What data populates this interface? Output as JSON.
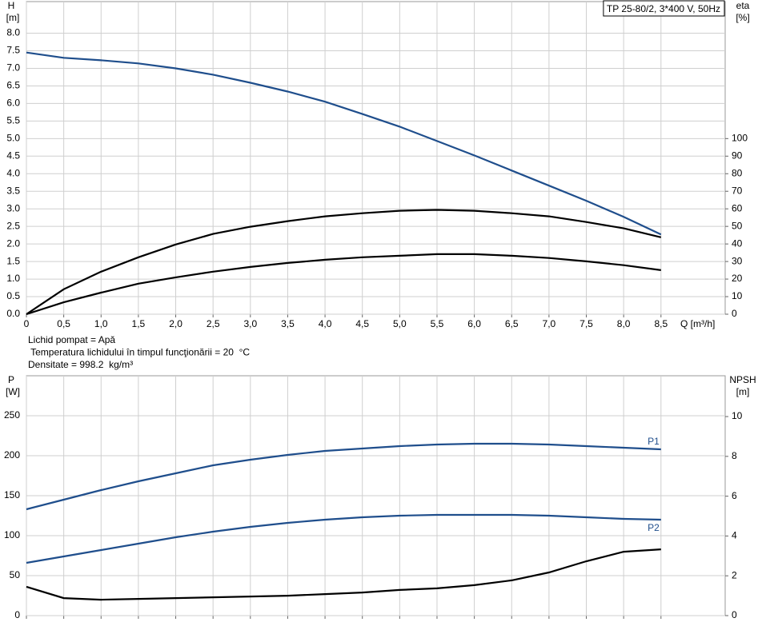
{
  "chart_data": [
    {
      "type": "line",
      "title": "TP 25-80/2, 3*400 V, 50Hz",
      "y_label": "H",
      "y_unit": "[m]",
      "y2_label": "eta",
      "y2_unit": "[%]",
      "x_label": "Q [m³/h]",
      "xlim": [
        0,
        9.36
      ],
      "xticks": [
        0,
        {
          "value": 0.5,
          "label": "0,5"
        },
        {
          "value": 1,
          "label": "1,0"
        },
        {
          "value": 1.5,
          "label": "1,5"
        },
        {
          "value": 2,
          "label": "2,0"
        },
        {
          "value": 2.5,
          "label": "2,5"
        },
        {
          "value": 3,
          "label": "3,0"
        },
        {
          "value": 3.5,
          "label": "3,5"
        },
        {
          "value": 4,
          "label": "4,0"
        },
        {
          "value": 4.5,
          "label": "4,5"
        },
        {
          "value": 5,
          "label": "5,0"
        },
        {
          "value": 5.5,
          "label": "5,5"
        },
        {
          "value": 6,
          "label": "6,0"
        },
        {
          "value": 6.5,
          "label": "6,5"
        },
        {
          "value": 7,
          "label": "7,0"
        },
        {
          "value": 7.5,
          "label": "7,5"
        },
        {
          "value": 8,
          "label": "8,0"
        },
        {
          "value": 8.5,
          "label": "8,5"
        }
      ],
      "show_xtick_labels": true,
      "ylim": [
        0,
        8.9
      ],
      "yticks": [
        {
          "value": 0,
          "label": "0.0"
        },
        0.5,
        {
          "value": 1,
          "label": "1.0"
        },
        1.5,
        {
          "value": 2,
          "label": "2.0"
        },
        2.5,
        {
          "value": 3,
          "label": "3.0"
        },
        3.5,
        {
          "value": 4,
          "label": "4.0"
        },
        4.5,
        {
          "value": 5,
          "label": "5.0"
        },
        5.5,
        {
          "value": 6,
          "label": "6.0"
        },
        6.5,
        {
          "value": 7,
          "label": "7.0"
        },
        7.5,
        {
          "value": 8,
          "label": "8.0"
        }
      ],
      "y2lim": [
        0,
        178
      ],
      "y2ticks": [
        0,
        10,
        20,
        30,
        40,
        50,
        60,
        70,
        80,
        90,
        100
      ],
      "grid": true,
      "x": [
        0,
        0.5,
        1,
        1.5,
        2,
        2.5,
        3,
        3.5,
        4,
        4.5,
        5,
        5.5,
        6,
        6.5,
        7,
        7.5,
        8,
        8.5
      ],
      "series": [
        {
          "color": "#1f4e8c",
          "values": [
            7.45,
            7.3,
            7.23,
            7.14,
            7.0,
            6.82,
            6.59,
            6.34,
            6.05,
            5.7,
            5.34,
            4.93,
            4.52,
            4.09,
            3.66,
            3.23,
            2.77,
            2.27
          ]
        },
        {
          "color": "#000000",
          "axis": "y2",
          "values": [
            0,
            14.2,
            24.2,
            32.4,
            39.7,
            45.7,
            49.8,
            53,
            55.7,
            57.5,
            58.9,
            59.4,
            58.9,
            57.5,
            55.7,
            52.5,
            48.9,
            43.8
          ]
        },
        {
          "color": "#000000",
          "axis": "y2",
          "values": [
            0,
            6.8,
            12.3,
            17.4,
            21,
            24.2,
            26.9,
            29.2,
            31,
            32.4,
            33.3,
            34.2,
            34.2,
            33.3,
            32,
            30.1,
            27.9,
            25.1
          ]
        }
      ],
      "annotations": [
        "Lichid pompat = Apă",
        " Temperatura lichidului în timpul funcţionării = 20  °C",
        "Densitate = 998.2  kg/m³"
      ]
    },
    {
      "type": "line",
      "y_label": "P",
      "y_unit": "[W]",
      "y2_label": "NPSH",
      "y2_unit": "[m]",
      "xlim": [
        0,
        9.36
      ],
      "xticks": [
        0,
        0.5,
        1,
        1.5,
        2,
        2.5,
        3,
        3.5,
        4,
        4.5,
        5,
        5.5,
        6,
        6.5,
        7,
        7.5,
        8,
        8.5
      ],
      "show_xtick_labels": false,
      "ylim": [
        0,
        300
      ],
      "yticks": [
        0,
        50,
        100,
        150,
        200,
        250
      ],
      "y2lim": [
        0,
        12.05
      ],
      "y2ticks": [
        0,
        2,
        4,
        6,
        8,
        10
      ],
      "grid": true,
      "x": [
        0,
        0.5,
        1,
        1.5,
        2,
        2.5,
        3,
        3.5,
        4,
        4.5,
        5,
        5.5,
        6,
        6.5,
        7,
        7.5,
        8,
        8.5
      ],
      "series": [
        {
          "name": "P1",
          "color": "#1f4e8c",
          "values": [
            133,
            145,
            157,
            168,
            178,
            188,
            195,
            201,
            206,
            209,
            212,
            214,
            215,
            215,
            214,
            212,
            210,
            208
          ]
        },
        {
          "name": "P2",
          "color": "#1f4e8c",
          "values": [
            66,
            74,
            82,
            90,
            98,
            105,
            111,
            116,
            120,
            123,
            125,
            126,
            126,
            126,
            125,
            123,
            121,
            120
          ]
        },
        {
          "color": "#000000",
          "axis": "y2",
          "values": [
            1.45,
            0.88,
            0.8,
            0.84,
            0.88,
            0.92,
            0.96,
            1.0,
            1.08,
            1.16,
            1.29,
            1.37,
            1.53,
            1.77,
            2.17,
            2.73,
            3.21,
            3.33
          ]
        }
      ]
    }
  ]
}
